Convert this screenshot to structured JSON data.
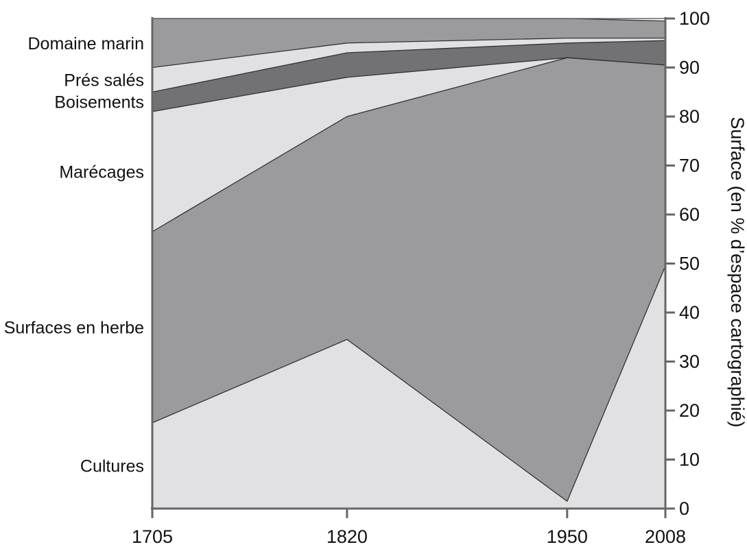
{
  "chart_data": {
    "type": "area",
    "stacked": true,
    "x": [
      1705,
      1820,
      1950,
      2008
    ],
    "ylabel": "Surface (en % d’espace cartographié)",
    "ylim": [
      0,
      100
    ],
    "yticks": [
      0,
      10,
      20,
      30,
      40,
      50,
      60,
      70,
      80,
      90,
      100
    ],
    "y_axis_side": "right",
    "legend": "inline-left",
    "series": [
      {
        "name": "Cultures",
        "values": [
          17.5,
          34.5,
          1.5,
          49.5
        ],
        "color": "#e1e1e3"
      },
      {
        "name": "Surfaces en herbe",
        "values": [
          39,
          45.5,
          90.5,
          41
        ],
        "color": "#9b9b9d"
      },
      {
        "name": "Marécages",
        "values": [
          24.5,
          8,
          0,
          0
        ],
        "color": "#e1e1e3"
      },
      {
        "name": "Boisements",
        "values": [
          4,
          5,
          3,
          5
        ],
        "color": "#727274"
      },
      {
        "name": "Prés salés",
        "values": [
          5,
          2,
          1,
          0.5
        ],
        "color": "#e1e1e3"
      },
      {
        "name": "Domaine marin",
        "values": [
          10,
          5,
          4,
          3.5
        ],
        "color": "#9b9b9d"
      }
    ]
  }
}
